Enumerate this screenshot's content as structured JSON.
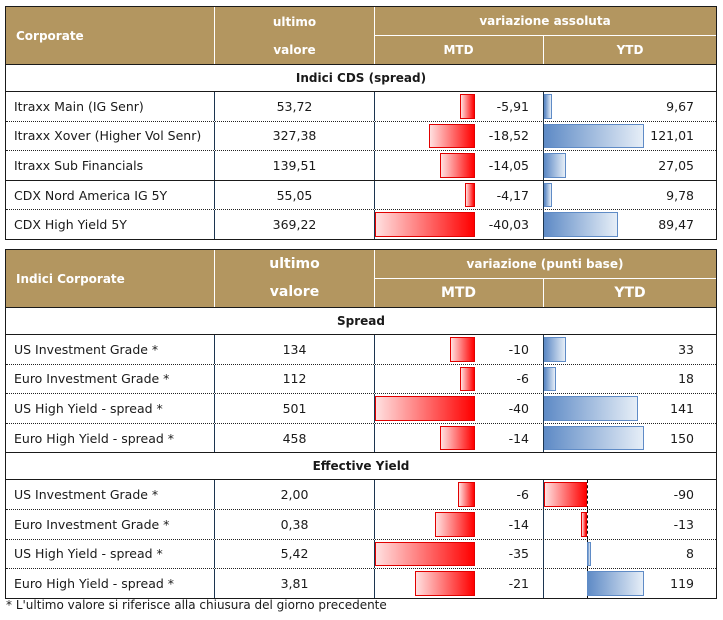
{
  "table1": {
    "header": {
      "name": "Corporate",
      "value_line1": "ultimo",
      "value_line2": "valore",
      "variation": "variazione assoluta",
      "mtd": "MTD",
      "ytd": "YTD"
    },
    "section": "Indici CDS (spread)",
    "rows": [
      {
        "name": "Itraxx Main (IG Senr)",
        "value": "53,72",
        "mtd": -5.91,
        "mtd_label": "-5,91",
        "ytd": 9.67,
        "ytd_label": "9,67"
      },
      {
        "name": "Itraxx Xover (Higher Vol Senr)",
        "value": "327,38",
        "mtd": -18.52,
        "mtd_label": "-18,52",
        "ytd": 121.01,
        "ytd_label": "121,01"
      },
      {
        "name": "Itraxx Sub Financials",
        "value": "139,51",
        "mtd": -14.05,
        "mtd_label": "-14,05",
        "ytd": 27.05,
        "ytd_label": "27,05"
      },
      {
        "name": "CDX Nord America IG 5Y",
        "value": "55,05",
        "mtd": -4.17,
        "mtd_label": "-4,17",
        "ytd": 9.78,
        "ytd_label": "9,78"
      },
      {
        "name": "CDX High Yield 5Y",
        "value": "369,22",
        "mtd": -40.03,
        "mtd_label": "-40,03",
        "ytd": 89.47,
        "ytd_label": "89,47"
      }
    ]
  },
  "table2": {
    "header": {
      "name": "Indici Corporate",
      "value_line1": "ultimo",
      "value_line2": "valore",
      "variation": "variazione (punti base)",
      "mtd": "MTD",
      "ytd": "YTD"
    },
    "sections": [
      {
        "title": "Spread",
        "rows": [
          {
            "name": "US Investment Grade *",
            "value": "134",
            "mtd": -10,
            "mtd_label": "-10",
            "ytd": 33,
            "ytd_label": "33"
          },
          {
            "name": "Euro Investment Grade *",
            "value": "112",
            "mtd": -6,
            "mtd_label": "-6",
            "ytd": 18,
            "ytd_label": "18"
          },
          {
            "name": "US High Yield - spread *",
            "value": "501",
            "mtd": -40,
            "mtd_label": "-40",
            "ytd": 141,
            "ytd_label": "141"
          },
          {
            "name": "Euro High Yield - spread *",
            "value": "458",
            "mtd": -14,
            "mtd_label": "-14",
            "ytd": 150,
            "ytd_label": "150"
          }
        ]
      },
      {
        "title": "Effective Yield",
        "rows": [
          {
            "name": "US Investment Grade *",
            "value": "2,00",
            "mtd": -6,
            "mtd_label": "-6",
            "ytd": -90,
            "ytd_label": "-90"
          },
          {
            "name": "Euro Investment Grade *",
            "value": "0,38",
            "mtd": -14,
            "mtd_label": "-14",
            "ytd": -13,
            "ytd_label": "-13"
          },
          {
            "name": "US High Yield - spread *",
            "value": "5,42",
            "mtd": -35,
            "mtd_label": "-35",
            "ytd": 8,
            "ytd_label": "8"
          },
          {
            "name": "Euro High Yield - spread *",
            "value": "3,81",
            "mtd": -21,
            "mtd_label": "-21",
            "ytd": 119,
            "ytd_label": "119"
          }
        ]
      }
    ]
  },
  "footnote": "* L'ultimo valore si riferisce alla chiusura del giorno precedente",
  "colors": {
    "header_bg": "#b39660",
    "negative_bar": "#ff0000",
    "positive_bar": "#5f8bc6"
  }
}
